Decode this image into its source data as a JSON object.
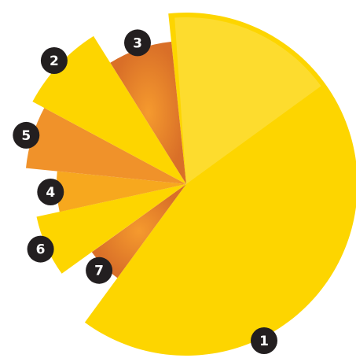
{
  "chart_data": {
    "type": "pie",
    "title": "",
    "categories": [
      "1",
      "7",
      "6",
      "4",
      "5",
      "2",
      "3"
    ],
    "values": [
      247,
      20,
      26,
      20,
      25,
      33,
      29
    ],
    "colors": [
      "#fdd500",
      "#f0922a",
      "#fdd500",
      "#f7a81e",
      "#f0922a",
      "#fdd500",
      "#e8872c"
    ],
    "legend": "labels-on-slices"
  }
}
